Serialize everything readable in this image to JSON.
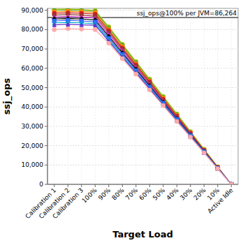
{
  "chart_data": {
    "type": "line",
    "x_label": "Target Load",
    "y_label": "ssj_ops",
    "categories": [
      "Calibration 1",
      "Calibration 2",
      "Calibration 3",
      "100%",
      "90%",
      "80%",
      "70%",
      "60%",
      "50%",
      "40%",
      "30%",
      "20%",
      "10%",
      "Active Idle"
    ],
    "series": [
      {
        "color": "#aacc00",
        "marker": "circle",
        "values": [
          90500,
          90700,
          90400,
          90000,
          81500,
          72500,
          63500,
          54500,
          45500,
          36500,
          27300,
          18200,
          9100,
          0
        ]
      },
      {
        "color": "#55aa33",
        "marker": "circle",
        "values": [
          90000,
          90200,
          90000,
          89500,
          80800,
          72000,
          63000,
          54000,
          45000,
          36000,
          27000,
          18000,
          9000,
          0
        ]
      },
      {
        "color": "#ff8800",
        "marker": "square",
        "values": [
          89200,
          89500,
          89300,
          88800,
          80000,
          71200,
          62300,
          53500,
          44500,
          35600,
          26700,
          17800,
          8900,
          0
        ]
      },
      {
        "color": "#cc2222",
        "marker": "circle",
        "values": [
          88500,
          88700,
          88500,
          88000,
          79500,
          70500,
          61800,
          53000,
          44000,
          35300,
          26500,
          17600,
          8800,
          0
        ]
      },
      {
        "color": "#993333",
        "marker": "diamond",
        "values": [
          87500,
          87800,
          87500,
          87000,
          78500,
          69800,
          61000,
          52300,
          43500,
          34800,
          26100,
          17400,
          8700,
          0
        ]
      },
      {
        "color": "#cc33cc",
        "marker": "triangle",
        "values": [
          86500,
          86800,
          86500,
          86000,
          77500,
          69000,
          60300,
          51700,
          43000,
          34400,
          25800,
          17200,
          8600,
          0
        ]
      },
      {
        "color": "#000000",
        "marker": "diamond",
        "values": [
          85500,
          85700,
          85500,
          85000,
          76500,
          68000,
          59500,
          51000,
          42500,
          34000,
          25500,
          17000,
          8500,
          0
        ]
      },
      {
        "color": "#3366ff",
        "marker": "square",
        "values": [
          84500,
          84800,
          84500,
          84000,
          75500,
          67200,
          58800,
          50400,
          42000,
          33600,
          25200,
          16800,
          8400,
          0
        ]
      },
      {
        "color": "#00aacc",
        "marker": "triangle",
        "values": [
          83500,
          83700,
          83500,
          83000,
          74700,
          66400,
          58100,
          49800,
          41500,
          33200,
          24900,
          16600,
          8300,
          0
        ]
      },
      {
        "color": "#6633cc",
        "marker": "triangle",
        "values": [
          82500,
          82800,
          82500,
          82300,
          74000,
          65800,
          57600,
          49400,
          41100,
          32900,
          24700,
          16400,
          8200,
          0
        ]
      },
      {
        "color": "#ffaaaa",
        "marker": "circle",
        "values": [
          80000,
          80500,
          80300,
          80000,
          73000,
          65000,
          57000,
          48800,
          40700,
          32500,
          24400,
          16300,
          8100,
          0
        ]
      }
    ],
    "annotations": [
      {
        "text": "ssj_ops@100% per JVM=86,264",
        "value": 86264
      }
    ],
    "ylim": [
      0,
      91000
    ],
    "yticks": [
      0,
      {
        "value": 10000,
        "label": "10,000"
      },
      {
        "value": 20000,
        "label": "20,000"
      },
      {
        "value": 30000,
        "label": "30,000"
      },
      {
        "value": 40000,
        "label": "40,000"
      },
      {
        "value": 50000,
        "label": "50,000"
      },
      {
        "value": 60000,
        "label": "60,000"
      },
      {
        "value": 70000,
        "label": "70,000"
      },
      {
        "value": 80000,
        "label": "80,000"
      },
      {
        "value": 90000,
        "label": "90,000"
      }
    ],
    "grid": true
  }
}
